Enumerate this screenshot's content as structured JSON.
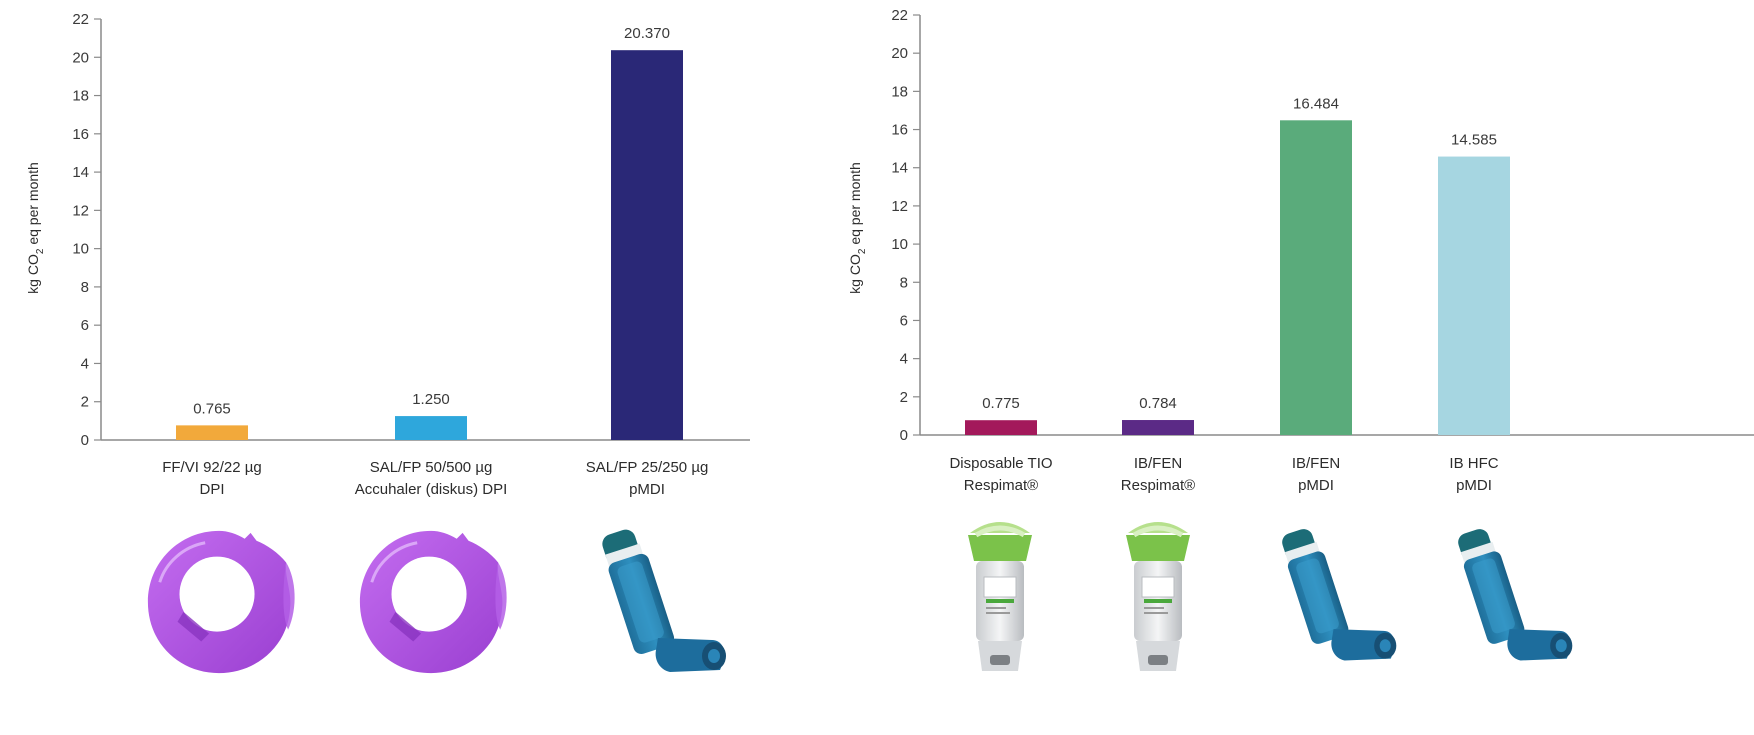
{
  "chart_data": [
    {
      "type": "bar",
      "ylabel": "kg CO2 eq per month",
      "ylabel_main": "kg CO",
      "ylabel_sub": "2",
      "ylabel_rest": " eq per month",
      "ylim": [
        0,
        22
      ],
      "yticks": [
        "0",
        "2",
        "4",
        "6",
        "8",
        "10",
        "12",
        "14",
        "16",
        "18",
        "20",
        "22"
      ],
      "grid": false,
      "categories": [
        [
          "FF/VI 92/22 µg",
          "DPI"
        ],
        [
          "SAL/FP 50/500 µg",
          "Accuhaler (diskus) DPI"
        ],
        [
          "SAL/FP 25/250 µg",
          "pMDI"
        ]
      ],
      "values": [
        0.765,
        1.25,
        20.37
      ],
      "value_labels": [
        "0.765",
        "1.250",
        "20.370"
      ],
      "colors": [
        "#f2a93b",
        "#2ea7dc",
        "#2a2877"
      ],
      "device_icons": [
        "ellipta-inhaler-icon",
        "accuhaler-inhaler-icon",
        "pmdi-inhaler-icon"
      ]
    },
    {
      "type": "bar",
      "ylabel": "kg CO2 eq per month",
      "ylabel_main": "kg CO",
      "ylabel_sub": "2",
      "ylabel_rest": " eq per month",
      "ylim": [
        0,
        22
      ],
      "yticks": [
        "0",
        "2",
        "4",
        "6",
        "8",
        "10",
        "12",
        "14",
        "16",
        "18",
        "20",
        "22"
      ],
      "grid": false,
      "categories": [
        [
          "Disposable TIO",
          "Respimat®"
        ],
        [
          "IB/FEN",
          "Respimat®"
        ],
        [
          "IB/FEN",
          "pMDI"
        ],
        [
          "IB HFC",
          "pMDI"
        ]
      ],
      "values": [
        0.775,
        0.784,
        16.484,
        14.585
      ],
      "value_labels": [
        "0.775",
        "0.784",
        "16.484",
        "14.585"
      ],
      "colors": [
        "#a3195b",
        "#5b2a86",
        "#5aab7b",
        "#a6d6e1"
      ],
      "device_icons": [
        "respimat-inhaler-icon",
        "respimat-inhaler-icon",
        "pmdi-inhaler-icon",
        "pmdi-inhaler-icon"
      ]
    }
  ]
}
